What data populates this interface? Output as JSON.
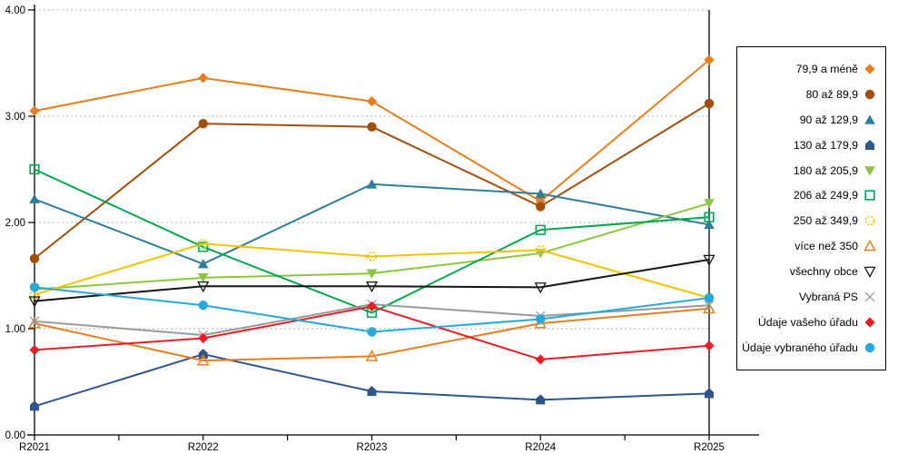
{
  "chart_data": {
    "type": "line",
    "title": "",
    "xlabel": "",
    "ylabel": "",
    "categories": [
      "R2021",
      "R2022",
      "R2023",
      "R2024",
      "R2025"
    ],
    "y_axis": {
      "min": 0,
      "max": 4,
      "step": 1,
      "tick_labels": [
        "0.00",
        "1.00",
        "2.00",
        "3.00",
        "4.00"
      ]
    },
    "grid": "horizontal-dotted",
    "legend_position": "right",
    "series": [
      {
        "name": "79,9 a méně",
        "color": "#E87E1E",
        "marker": "diamond",
        "values": [
          3.05,
          3.36,
          3.14,
          2.2,
          3.53
        ]
      },
      {
        "name": "80 až 89,9",
        "color": "#A24E0E",
        "marker": "circle",
        "values": [
          1.66,
          2.93,
          2.9,
          2.15,
          3.12
        ]
      },
      {
        "name": "90 až 129,9",
        "color": "#2F7E99",
        "marker": "triangle-up",
        "values": [
          2.22,
          1.61,
          2.36,
          2.27,
          1.98
        ]
      },
      {
        "name": "130 až 179,9",
        "color": "#30548C",
        "marker": "pentagon",
        "values": [
          0.27,
          0.76,
          0.41,
          0.33,
          0.39
        ]
      },
      {
        "name": "180 až 205,9",
        "color": "#8CC63E",
        "marker": "triangle-down",
        "values": [
          1.37,
          1.48,
          1.52,
          1.71,
          2.18
        ]
      },
      {
        "name": "206 až 249,9",
        "color": "#00A551",
        "marker": "square-open",
        "values": [
          2.5,
          1.77,
          1.15,
          1.93,
          2.05
        ]
      },
      {
        "name": "250 až 349,9",
        "color": "#F3C300",
        "marker": "circle-open",
        "values": [
          1.32,
          1.8,
          1.68,
          1.74,
          1.29
        ]
      },
      {
        "name": "více než 350",
        "color": "#E87E1E",
        "marker": "triangle-open",
        "values": [
          1.05,
          0.7,
          0.74,
          1.05,
          1.19
        ]
      },
      {
        "name": "všechny obce",
        "color": "#141414",
        "marker": "triangle-down-open",
        "values": [
          1.26,
          1.4,
          1.4,
          1.39,
          1.65
        ]
      },
      {
        "name": "Vybraná PS",
        "color": "#999999",
        "marker": "x",
        "values": [
          1.07,
          0.94,
          1.23,
          1.12,
          1.22
        ]
      },
      {
        "name": "Údaje vašeho úřadu",
        "color": "#EA1D25",
        "marker": "diamond",
        "values": [
          0.8,
          0.91,
          1.21,
          0.71,
          0.84
        ]
      },
      {
        "name": "Údaje vybraného úřadu",
        "color": "#29A8DC",
        "marker": "circle",
        "values": [
          1.39,
          1.22,
          0.97,
          1.09,
          1.29
        ]
      }
    ]
  }
}
